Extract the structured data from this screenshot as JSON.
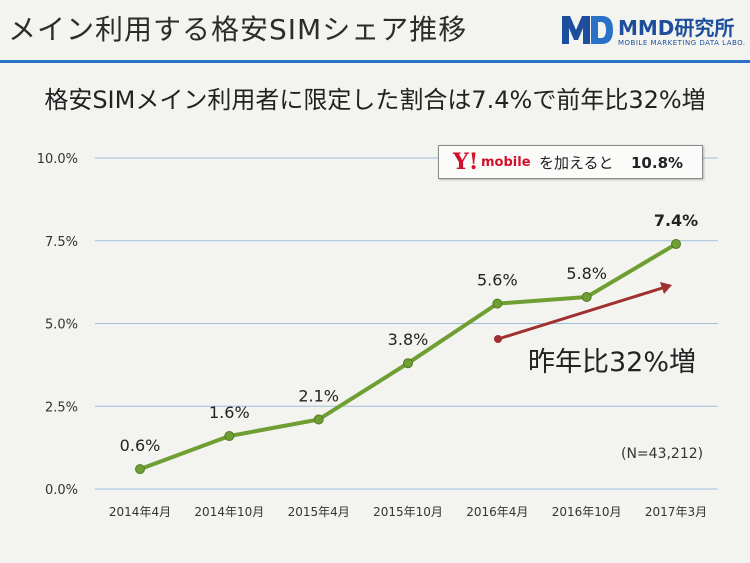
{
  "slide_title": "メイン利用する格安SIMシェア推移",
  "logo": {
    "name": "MMD研究所",
    "subtitle": "MOBILE MARKETING DATA LABO."
  },
  "subtitle": "格安SIMメイン利用者に限定した割合は7.4%で前年比32%増",
  "callout": {
    "logo_y": "Y!",
    "logo_mobile": "mobile",
    "text": "を加えると",
    "value": "10.8%"
  },
  "growth_label": "昨年比32%増",
  "sample_note": "(N=43,212)",
  "colors": {
    "line": "#6f9e32",
    "marker": "#6f9e32",
    "grid": "#9cbfe0",
    "arrow": "#a0302f",
    "accent": "#2a72c7"
  },
  "chart_data": {
    "type": "line",
    "categories": [
      "2014年4月",
      "2014年10月",
      "2015年4月",
      "2015年10月",
      "2016年4月",
      "2016年10月",
      "2017年3月"
    ],
    "series": [
      {
        "values": [
          0.6,
          1.6,
          2.1,
          3.8,
          5.6,
          5.8,
          7.4
        ]
      }
    ],
    "data_labels": [
      "0.6%",
      "1.6%",
      "2.1%",
      "3.8%",
      "5.6%",
      "5.8%",
      "7.4%"
    ],
    "yticks": [
      "0.0%",
      "2.5%",
      "5.0%",
      "7.5%",
      "10.0%"
    ],
    "ylim": [
      0,
      10
    ],
    "grid": true
  }
}
